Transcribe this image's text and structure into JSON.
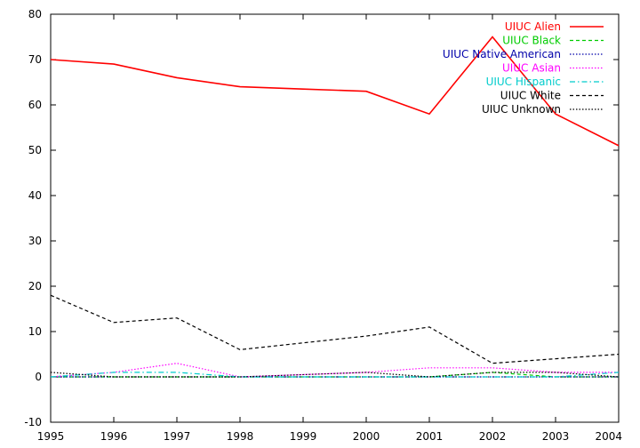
{
  "chart_data": {
    "type": "line",
    "title": "",
    "xlabel": "",
    "ylabel": "",
    "x": [
      1995,
      1996,
      1997,
      1998,
      1999,
      2000,
      2001,
      2002,
      2003,
      2004
    ],
    "xlim": [
      1995,
      2004
    ],
    "ylim": [
      -10,
      80
    ],
    "x_ticks": [
      "1995",
      "1996",
      "1997",
      "1998",
      "1999",
      "2000",
      "2001",
      "2002",
      "2003",
      "2004"
    ],
    "y_ticks": [
      "-10",
      "0",
      "10",
      "20",
      "30",
      "40",
      "50",
      "60",
      "70",
      "80"
    ],
    "grid": false,
    "legend_position": "top-right",
    "series": [
      {
        "name": "UIUC Alien",
        "color": "#ff0000",
        "dash": "solid",
        "values": [
          70,
          69,
          66,
          64,
          63.5,
          63,
          58,
          75,
          58,
          51
        ]
      },
      {
        "name": "UIUC Black",
        "color": "#00cc00",
        "dash": "dashed",
        "values": [
          0,
          0,
          0,
          0,
          0,
          0,
          0,
          1,
          0,
          0
        ]
      },
      {
        "name": "UIUC Native American",
        "color": "#0000aa",
        "dash": "dotted",
        "values": [
          0,
          0,
          0,
          0,
          0,
          0,
          0,
          0,
          0,
          0
        ]
      },
      {
        "name": "UIUC Asian",
        "color": "#ff00ff",
        "dash": "dotted",
        "values": [
          0,
          1,
          3,
          0,
          0.5,
          1,
          2,
          2,
          1,
          1
        ]
      },
      {
        "name": "UIUC Hispanic",
        "color": "#00cccc",
        "dash": "dashdot",
        "values": [
          0,
          1,
          1,
          0,
          0,
          0,
          0,
          0,
          0,
          1
        ]
      },
      {
        "name": "UIUC White",
        "color": "#000000",
        "dash": "dashed",
        "values": [
          18,
          12,
          13,
          6,
          7.5,
          9,
          11,
          3,
          4,
          5
        ]
      },
      {
        "name": "UIUC Unknown",
        "color": "#000000",
        "dash": "dotted",
        "values": [
          1,
          0,
          0,
          0,
          0.5,
          1,
          0,
          1,
          1,
          0
        ]
      }
    ]
  }
}
